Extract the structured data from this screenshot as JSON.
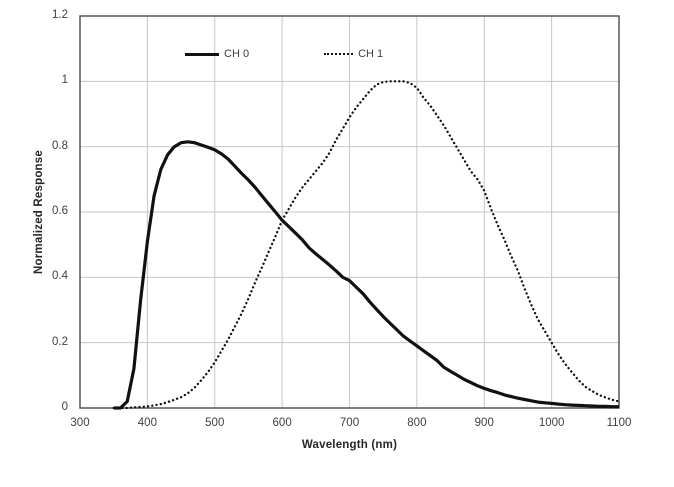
{
  "chart": {
    "colors": {
      "curve": "#111111",
      "gridline": "#c6c6c6",
      "plot_border": "#4a4a4a",
      "tick_text": "#3f3f3f",
      "axis_title_text": "#262626",
      "background": "#ffffff"
    },
    "y_tick_values": [
      0,
      0.2,
      0.4,
      0.6,
      0.8,
      1.0,
      1.2
    ],
    "y_tick_labels": [
      "0",
      "0.2",
      "0.4",
      "0.6",
      "0.8",
      "1",
      "1.2"
    ],
    "x_tick_values": [
      300,
      400,
      500,
      600,
      700,
      800,
      900,
      1000,
      1100
    ],
    "x_tick_labels": [
      "300",
      "400",
      "500",
      "600",
      "700",
      "800",
      "900",
      "1000",
      "1100"
    ]
  },
  "chart_data": {
    "type": "line",
    "title": "",
    "xlabel": "Wavelength (nm)",
    "ylabel": "Normalized Response",
    "xlim": [
      300,
      1100
    ],
    "ylim": [
      0,
      1.2
    ],
    "grid": true,
    "legend_position": "top-inside",
    "x": [
      350,
      360,
      370,
      380,
      390,
      400,
      410,
      420,
      430,
      440,
      450,
      460,
      470,
      480,
      490,
      500,
      510,
      520,
      530,
      540,
      550,
      560,
      570,
      580,
      590,
      600,
      610,
      620,
      630,
      640,
      650,
      660,
      670,
      680,
      690,
      700,
      710,
      720,
      730,
      740,
      750,
      760,
      770,
      780,
      790,
      800,
      810,
      820,
      830,
      840,
      850,
      860,
      870,
      880,
      890,
      900,
      910,
      920,
      930,
      940,
      950,
      960,
      970,
      980,
      990,
      1000,
      1010,
      1020,
      1030,
      1040,
      1050,
      1060,
      1070,
      1080,
      1090,
      1100
    ],
    "series": [
      {
        "name": "CH 0",
        "line_style": "solid",
        "values": [
          0,
          0,
          0.02,
          0.12,
          0.33,
          0.51,
          0.65,
          0.73,
          0.775,
          0.8,
          0.812,
          0.815,
          0.812,
          0.805,
          0.798,
          0.79,
          0.778,
          0.762,
          0.74,
          0.718,
          0.698,
          0.675,
          0.65,
          0.625,
          0.6,
          0.575,
          0.555,
          0.535,
          0.515,
          0.49,
          0.472,
          0.455,
          0.438,
          0.42,
          0.4,
          0.39,
          0.37,
          0.35,
          0.325,
          0.302,
          0.28,
          0.26,
          0.24,
          0.22,
          0.205,
          0.19,
          0.175,
          0.16,
          0.145,
          0.125,
          0.112,
          0.1,
          0.088,
          0.078,
          0.068,
          0.06,
          0.053,
          0.047,
          0.04,
          0.035,
          0.03,
          0.026,
          0.022,
          0.018,
          0.016,
          0.014,
          0.012,
          0.01,
          0.009,
          0.008,
          0.007,
          0.006,
          0.005,
          0.005,
          0.004,
          0.004
        ]
      },
      {
        "name": "CH 1",
        "line_style": "dotted",
        "values": [
          0,
          0,
          0,
          0.002,
          0.003,
          0.005,
          0.008,
          0.012,
          0.018,
          0.025,
          0.033,
          0.045,
          0.062,
          0.085,
          0.11,
          0.14,
          0.175,
          0.21,
          0.25,
          0.29,
          0.335,
          0.385,
          0.43,
          0.478,
          0.525,
          0.575,
          0.61,
          0.645,
          0.675,
          0.7,
          0.725,
          0.75,
          0.78,
          0.82,
          0.855,
          0.89,
          0.92,
          0.945,
          0.97,
          0.99,
          0.998,
          1,
          1,
          1,
          0.995,
          0.98,
          0.95,
          0.925,
          0.895,
          0.865,
          0.83,
          0.795,
          0.76,
          0.725,
          0.7,
          0.665,
          0.61,
          0.56,
          0.515,
          0.465,
          0.42,
          0.365,
          0.315,
          0.27,
          0.235,
          0.2,
          0.165,
          0.135,
          0.11,
          0.085,
          0.065,
          0.052,
          0.04,
          0.032,
          0.025,
          0.02
        ]
      }
    ]
  }
}
